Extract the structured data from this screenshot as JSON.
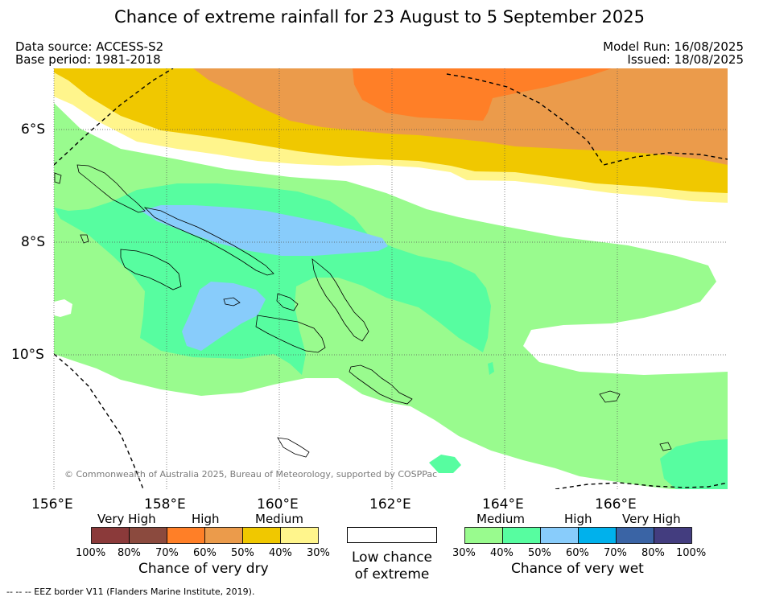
{
  "title": "Chance of extreme rainfall for 23 August to 5 September 2025",
  "data_source": "Data source: ACCESS-S2",
  "base_period": "Base period: 1981-2018",
  "model_run": "Model Run: 16/08/2025",
  "issued": "Issued: 18/08/2025",
  "copyright": "© Commonwealth of Australia 2025, Bureau of Meteorology, supported by COSPPac",
  "footer": "--  --  -- EEZ border V11 (Flanders Marine Institute, 2019).",
  "lat_ticks": [
    "6°S",
    "8°S",
    "10°S"
  ],
  "lon_ticks": [
    "156°E",
    "158°E",
    "160°E",
    "162°E",
    "164°E",
    "166°E"
  ],
  "legend": {
    "dry": {
      "headers": [
        "Very High",
        "High",
        "Medium"
      ],
      "colors": [
        "#8b3a3a",
        "#8b4a3e",
        "#ff7f27",
        "#eb9b4b",
        "#f0c800",
        "#fff58c"
      ],
      "percents": [
        "100%",
        "80%",
        "70%",
        "60%",
        "50%",
        "40%",
        "30%"
      ],
      "caption": "Chance of very dry"
    },
    "low": {
      "color": "#ffffff",
      "caption_line1": "Low chance",
      "caption_line2": "of extreme"
    },
    "wet": {
      "headers": [
        "Medium",
        "High",
        "Very High"
      ],
      "colors": [
        "#99fb8e",
        "#57fda0",
        "#88ccfb",
        "#00b1ec",
        "#3a64a5",
        "#433d7f"
      ],
      "percents": [
        "30%",
        "40%",
        "50%",
        "60%",
        "70%",
        "80%",
        "100%"
      ],
      "caption": "Chance of very wet"
    }
  }
}
